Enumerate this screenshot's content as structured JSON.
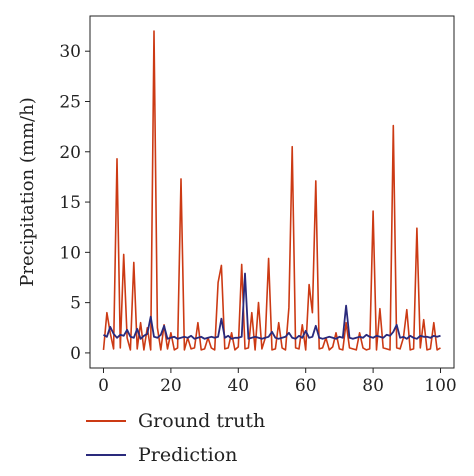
{
  "chart_data": {
    "type": "line",
    "xlabel": "",
    "ylabel": "Precipitation (mm/h)",
    "xlim": [
      -4,
      104
    ],
    "ylim": [
      -1.5,
      33.5
    ],
    "xticks": [
      0,
      20,
      40,
      60,
      80,
      100
    ],
    "yticks": [
      0,
      5,
      10,
      15,
      20,
      25,
      30
    ],
    "grid": false,
    "legend_position": "bottom",
    "series": [
      {
        "name": "Ground truth",
        "color": "#cc3a14",
        "values": [
          0.3,
          4,
          2,
          0.4,
          19.3,
          0.5,
          9.8,
          1.5,
          0.3,
          9,
          0.4,
          3,
          0.3,
          2.5,
          0.3,
          32,
          2.5,
          0.3,
          2.8,
          0.4,
          2,
          0.3,
          0.5,
          17.3,
          0.3,
          1.5,
          0.4,
          0.5,
          3,
          0.3,
          0.4,
          1.5,
          0.5,
          0.3,
          7,
          8.7,
          0.4,
          0.5,
          2,
          0.3,
          0.6,
          8.8,
          0.4,
          0.5,
          4,
          0.3,
          5,
          0.4,
          1.5,
          9.4,
          0.3,
          0.4,
          3,
          0.5,
          0.3,
          4.5,
          20.5,
          0.5,
          0.4,
          2.8,
          0.3,
          6.8,
          4,
          17.1,
          0.4,
          0.5,
          1.5,
          0.3,
          0.6,
          2,
          0.4,
          0.3,
          3,
          0.5,
          0.4,
          0.3,
          2,
          0.5,
          0.3,
          0.4,
          14.1,
          0.3,
          4.4,
          0.5,
          0.4,
          0.3,
          22.6,
          0.5,
          0.4,
          1.5,
          4.3,
          0.3,
          0.4,
          12.4,
          0.5,
          3.3,
          0.3,
          0.4,
          3,
          0.3,
          0.5
        ]
      },
      {
        "name": "Prediction",
        "color": "#2a2a7c",
        "values": [
          1.8,
          1.6,
          2.6,
          1.9,
          1.5,
          1.8,
          1.7,
          2.3,
          1.6,
          1.5,
          2.4,
          1.4,
          1.7,
          1.9,
          3.6,
          1.6,
          1.5,
          1.8,
          2.7,
          1.4,
          1.5,
          1.6,
          1.4,
          1.5,
          1.6,
          1.5,
          1.7,
          1.4,
          1.5,
          1.6,
          1.4,
          1.5,
          1.6,
          1.5,
          1.6,
          3.4,
          1.5,
          1.7,
          1.4,
          1.5,
          1.5,
          1.6,
          7.9,
          1.4,
          1.5,
          1.6,
          1.5,
          1.4,
          1.5,
          1.6,
          2.1,
          1.5,
          1.4,
          1.5,
          1.6,
          2,
          1.5,
          1.4,
          1.7,
          1.5,
          2.2,
          1.5,
          1.6,
          2.7,
          1.5,
          1.4,
          1.5,
          1.6,
          1.5,
          1.4,
          1.6,
          1.5,
          4.7,
          1.5,
          1.4,
          1.5,
          1.6,
          1.5,
          1.8,
          1.6,
          1.5,
          1.7,
          1.6,
          1.5,
          1.8,
          1.7,
          2.1,
          2.8,
          1.5,
          1.6,
          1.4,
          1.7,
          1.5,
          1.4,
          1.7,
          1.6,
          1.6,
          1.5,
          1.7,
          1.6,
          1.7
        ]
      }
    ]
  }
}
